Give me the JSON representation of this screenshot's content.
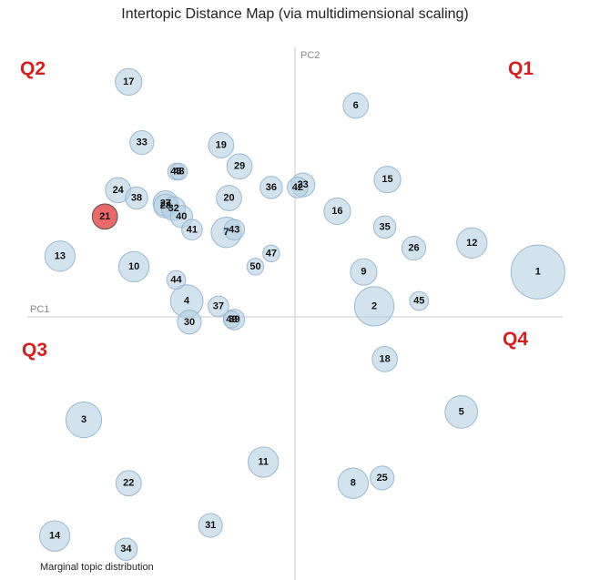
{
  "chart_title": "Intertopic Distance Map (via multidimensional scaling)",
  "axes": {
    "x_label": "PC1",
    "y_label": "PC2"
  },
  "quadrant_labels": {
    "q1": "Q1",
    "q2": "Q2",
    "q3": "Q3",
    "q4": "Q4"
  },
  "footer_note": "Marginal topic distribution",
  "colors": {
    "topic": "#b6d0e3",
    "selected": "#e8504d",
    "quadrant": "#d91e1e"
  },
  "chart_data": {
    "type": "scatter",
    "title": "Intertopic Distance Map (via multidimensional scaling)",
    "xlabel": "PC1",
    "ylabel": "PC2",
    "xlim": [
      -1,
      1
    ],
    "ylim": [
      -1,
      1
    ],
    "selected_topic": 21,
    "points": [
      {
        "topic": 1,
        "x": 0.92,
        "y": 0.17,
        "size": 4.1
      },
      {
        "topic": 2,
        "x": 0.3,
        "y": 0.04,
        "size": 2.2
      },
      {
        "topic": 3,
        "x": -0.8,
        "y": -0.39,
        "size": 1.8
      },
      {
        "topic": 4,
        "x": -0.41,
        "y": 0.06,
        "size": 1.5
      },
      {
        "topic": 5,
        "x": 0.63,
        "y": -0.36,
        "size": 1.5
      },
      {
        "topic": 6,
        "x": 0.23,
        "y": 0.8,
        "size": 0.9
      },
      {
        "topic": 7,
        "x": -0.26,
        "y": 0.32,
        "size": 1.3
      },
      {
        "topic": 8,
        "x": 0.22,
        "y": -0.63,
        "size": 1.3
      },
      {
        "topic": 9,
        "x": 0.26,
        "y": 0.17,
        "size": 1.0
      },
      {
        "topic": 10,
        "x": -0.61,
        "y": 0.19,
        "size": 1.3
      },
      {
        "topic": 11,
        "x": -0.12,
        "y": -0.55,
        "size": 1.3
      },
      {
        "topic": 12,
        "x": 0.67,
        "y": 0.28,
        "size": 1.3
      },
      {
        "topic": 13,
        "x": -0.89,
        "y": 0.23,
        "size": 1.3
      },
      {
        "topic": 14,
        "x": -0.91,
        "y": -0.83,
        "size": 1.3
      },
      {
        "topic": 15,
        "x": 0.35,
        "y": 0.52,
        "size": 1.0
      },
      {
        "topic": 16,
        "x": 0.16,
        "y": 0.4,
        "size": 1.0
      },
      {
        "topic": 17,
        "x": -0.63,
        "y": 0.89,
        "size": 1.0
      },
      {
        "topic": 18,
        "x": 0.34,
        "y": -0.16,
        "size": 0.9
      },
      {
        "topic": 19,
        "x": -0.28,
        "y": 0.65,
        "size": 0.9
      },
      {
        "topic": 20,
        "x": -0.25,
        "y": 0.45,
        "size": 0.9
      },
      {
        "topic": 21,
        "x": -0.72,
        "y": 0.38,
        "size": 0.9
      },
      {
        "topic": 22,
        "x": -0.63,
        "y": -0.63,
        "size": 0.9
      },
      {
        "topic": 23,
        "x": 0.03,
        "y": 0.5,
        "size": 0.8
      },
      {
        "topic": 24,
        "x": -0.67,
        "y": 0.48,
        "size": 0.9
      },
      {
        "topic": 25,
        "x": 0.33,
        "y": -0.61,
        "size": 0.8
      },
      {
        "topic": 26,
        "x": 0.45,
        "y": 0.26,
        "size": 0.8
      },
      {
        "topic": 27,
        "x": -0.49,
        "y": 0.43,
        "size": 0.9
      },
      {
        "topic": 28,
        "x": -0.49,
        "y": 0.42,
        "size": 0.8
      },
      {
        "topic": 29,
        "x": -0.21,
        "y": 0.57,
        "size": 0.9
      },
      {
        "topic": 30,
        "x": -0.4,
        "y": -0.02,
        "size": 0.8
      },
      {
        "topic": 31,
        "x": -0.32,
        "y": -0.79,
        "size": 0.8
      },
      {
        "topic": 32,
        "x": -0.46,
        "y": 0.41,
        "size": 0.8
      },
      {
        "topic": 33,
        "x": -0.58,
        "y": 0.66,
        "size": 0.8
      },
      {
        "topic": 34,
        "x": -0.64,
        "y": -0.88,
        "size": 0.7
      },
      {
        "topic": 35,
        "x": 0.34,
        "y": 0.34,
        "size": 0.7
      },
      {
        "topic": 36,
        "x": -0.09,
        "y": 0.49,
        "size": 0.7
      },
      {
        "topic": 37,
        "x": -0.29,
        "y": 0.04,
        "size": 0.6
      },
      {
        "topic": 38,
        "x": -0.6,
        "y": 0.45,
        "size": 0.7
      },
      {
        "topic": 39,
        "x": -0.23,
        "y": -0.01,
        "size": 0.6
      },
      {
        "topic": 40,
        "x": -0.43,
        "y": 0.38,
        "size": 0.7
      },
      {
        "topic": 41,
        "x": -0.39,
        "y": 0.33,
        "size": 0.6
      },
      {
        "topic": 42,
        "x": 0.01,
        "y": 0.49,
        "size": 0.6
      },
      {
        "topic": 43,
        "x": -0.23,
        "y": 0.33,
        "size": 0.6
      },
      {
        "topic": 44,
        "x": -0.45,
        "y": 0.14,
        "size": 0.5
      },
      {
        "topic": 45,
        "x": 0.47,
        "y": 0.06,
        "size": 0.5
      },
      {
        "topic": 46,
        "x": -0.45,
        "y": 0.55,
        "size": 0.4
      },
      {
        "topic": 47,
        "x": -0.09,
        "y": 0.24,
        "size": 0.4
      },
      {
        "topic": 48,
        "x": -0.44,
        "y": 0.55,
        "size": 0.4
      },
      {
        "topic": 49,
        "x": -0.24,
        "y": -0.01,
        "size": 0.4
      },
      {
        "topic": 50,
        "x": -0.15,
        "y": 0.19,
        "size": 0.4
      }
    ]
  }
}
